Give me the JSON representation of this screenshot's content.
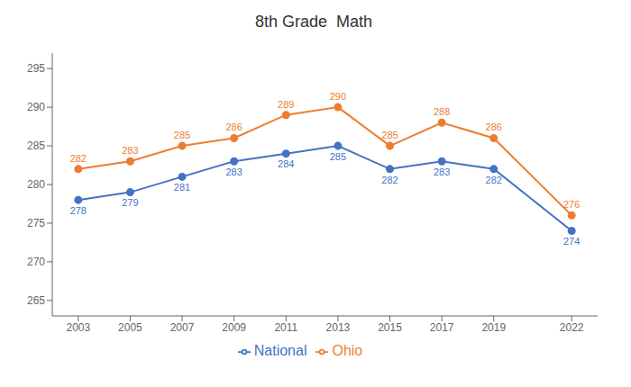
{
  "chart_data": {
    "type": "line",
    "title": "8th Grade  Math",
    "x": [
      2003,
      2005,
      2007,
      2009,
      2011,
      2013,
      2015,
      2017,
      2019,
      2022
    ],
    "series": [
      {
        "name": "National",
        "color": "#4472C4",
        "marker": "circle",
        "values": [
          278,
          279,
          281,
          283,
          284,
          285,
          282,
          283,
          282,
          274
        ]
      },
      {
        "name": "Ohio",
        "color": "#ED7D31",
        "marker": "circle",
        "values": [
          282,
          283,
          285,
          286,
          289,
          290,
          285,
          288,
          286,
          276
        ]
      }
    ],
    "xlim": [
      2002,
      2023
    ],
    "xticks": [
      2003,
      2005,
      2007,
      2009,
      2011,
      2013,
      2015,
      2017,
      2019,
      2022
    ],
    "ylim": [
      263,
      297
    ],
    "yticks": [
      265,
      270,
      275,
      280,
      285,
      290,
      295
    ],
    "grid": false,
    "legend": "bottom",
    "data_labels": true
  }
}
